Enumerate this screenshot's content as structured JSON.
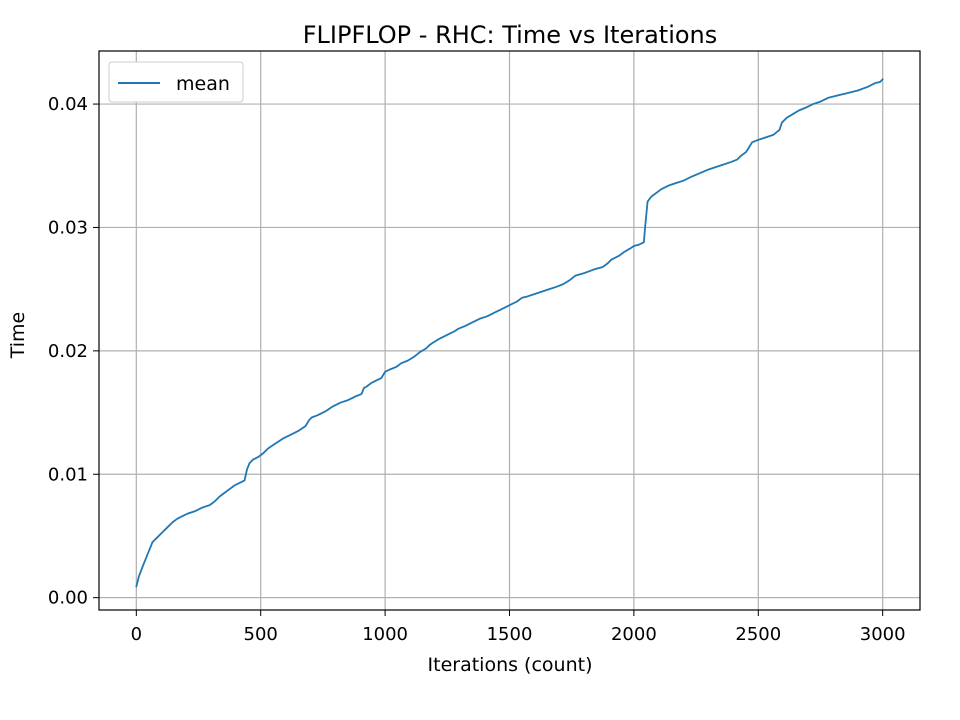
{
  "chart_data": {
    "type": "line",
    "title": "FLIPFLOP - RHC: Time vs Iterations",
    "xlabel": "Iterations (count)",
    "ylabel": "Time",
    "xlim": [
      -150,
      3150
    ],
    "ylim": [
      -0.001,
      0.0443
    ],
    "xticks": [
      0,
      500,
      1000,
      1500,
      2000,
      2500,
      3000
    ],
    "yticks": [
      0.0,
      0.01,
      0.02,
      0.03,
      0.04
    ],
    "xtick_labels": [
      "0",
      "500",
      "1000",
      "1500",
      "2000",
      "2500",
      "3000"
    ],
    "ytick_labels": [
      "0.00",
      "0.01",
      "0.02",
      "0.03",
      "0.04"
    ],
    "grid": true,
    "legend": {
      "position": "top-left",
      "entries": [
        "mean"
      ]
    },
    "series": [
      {
        "name": "mean",
        "color": "#1f77b4",
        "x": [
          0,
          10,
          25,
          45,
          65,
          85,
          105,
          125,
          145,
          165,
          185,
          205,
          235,
          265,
          295,
          315,
          335,
          355,
          375,
          395,
          415,
          435,
          445,
          455,
          470,
          490,
          510,
          530,
          560,
          590,
          620,
          650,
          680,
          695,
          705,
          730,
          760,
          790,
          820,
          850,
          880,
          905,
          915,
          925,
          945,
          965,
          985,
          1000,
          1020,
          1045,
          1065,
          1090,
          1115,
          1140,
          1165,
          1180,
          1195,
          1220,
          1250,
          1280,
          1295,
          1320,
          1350,
          1380,
          1410,
          1440,
          1460,
          1480,
          1500,
          1530,
          1550,
          1570,
          1600,
          1630,
          1660,
          1690,
          1715,
          1740,
          1765,
          1800,
          1840,
          1875,
          1895,
          1910,
          1940,
          1960,
          1985,
          2000,
          2020,
          2040,
          2045,
          2055,
          2070,
          2090,
          2110,
          2140,
          2170,
          2200,
          2230,
          2265,
          2300,
          2330,
          2360,
          2390,
          2415,
          2430,
          2450,
          2460,
          2475,
          2500,
          2530,
          2560,
          2585,
          2595,
          2615,
          2640,
          2665,
          2690,
          2720,
          2750,
          2780,
          2820,
          2860,
          2900,
          2940,
          2970,
          2990,
          3000
        ],
        "values": [
          0.0009,
          0.0017,
          0.0025,
          0.0035,
          0.0045,
          0.0049,
          0.0053,
          0.0057,
          0.0061,
          0.0064,
          0.0066,
          0.0068,
          0.007,
          0.0073,
          0.0075,
          0.0078,
          0.0082,
          0.0085,
          0.0088,
          0.0091,
          0.0093,
          0.0095,
          0.0104,
          0.0109,
          0.0112,
          0.0114,
          0.0117,
          0.0121,
          0.0125,
          0.0129,
          0.0132,
          0.0135,
          0.0139,
          0.0144,
          0.0146,
          0.0148,
          0.0151,
          0.0155,
          0.0158,
          0.016,
          0.0163,
          0.0165,
          0.017,
          0.0171,
          0.0174,
          0.0176,
          0.0178,
          0.0183,
          0.0185,
          0.0187,
          0.019,
          0.0192,
          0.0195,
          0.0199,
          0.0202,
          0.0205,
          0.0207,
          0.021,
          0.0213,
          0.0216,
          0.0218,
          0.022,
          0.0223,
          0.0226,
          0.0228,
          0.0231,
          0.0233,
          0.0235,
          0.0237,
          0.024,
          0.0243,
          0.0244,
          0.0246,
          0.0248,
          0.025,
          0.0252,
          0.0254,
          0.0257,
          0.0261,
          0.0263,
          0.0266,
          0.0268,
          0.0271,
          0.0274,
          0.0277,
          0.028,
          0.0283,
          0.0285,
          0.0286,
          0.0288,
          0.03,
          0.0321,
          0.0325,
          0.0328,
          0.0331,
          0.0334,
          0.0336,
          0.0338,
          0.0341,
          0.0344,
          0.0347,
          0.0349,
          0.0351,
          0.0353,
          0.0355,
          0.0358,
          0.0361,
          0.0364,
          0.0369,
          0.0371,
          0.0373,
          0.0375,
          0.0379,
          0.0385,
          0.0389,
          0.0392,
          0.0395,
          0.0397,
          0.04,
          0.0402,
          0.0405,
          0.0407,
          0.0409,
          0.0411,
          0.0414,
          0.0417,
          0.0418,
          0.042
        ]
      }
    ]
  }
}
